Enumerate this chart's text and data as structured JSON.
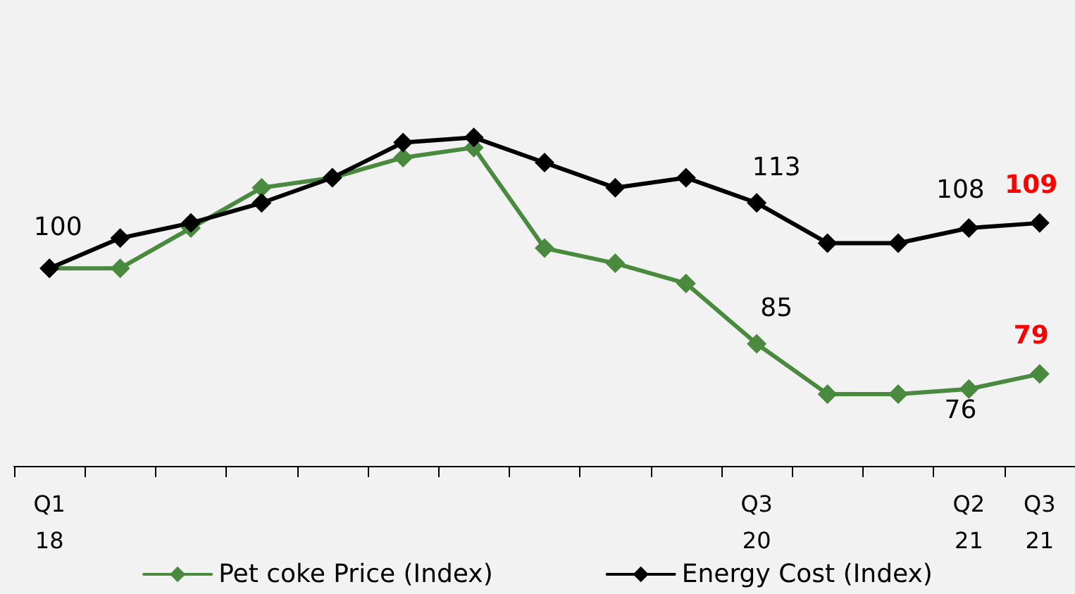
{
  "chart_data": {
    "type": "line",
    "categories": [
      "Q1\n18",
      null,
      null,
      null,
      null,
      null,
      null,
      null,
      null,
      null,
      "Q3\n20",
      null,
      null,
      "Q2\n21",
      "Q3\n21"
    ],
    "series": [
      {
        "name": "Pet coke Price (Index)",
        "color": "#4a8a3f",
        "values": [
          100,
          100,
          108,
          116,
          118,
          122,
          124,
          104,
          101,
          97,
          85,
          75,
          75,
          76,
          79
        ],
        "value_labels": [
          null,
          null,
          null,
          null,
          null,
          null,
          null,
          null,
          null,
          null,
          "85",
          null,
          null,
          "76",
          "79"
        ]
      },
      {
        "name": "Energy Cost (Index)",
        "color": "#000000",
        "values": [
          100,
          106,
          109,
          113,
          118,
          125,
          126,
          121,
          116,
          118,
          113,
          105,
          105,
          108,
          109
        ],
        "value_labels": [
          "100",
          null,
          null,
          null,
          null,
          null,
          null,
          null,
          null,
          null,
          "113",
          null,
          null,
          "108",
          "109"
        ]
      }
    ],
    "tick_labels": "x",
    "grid": false,
    "legend": "bottom",
    "marker": "diamond",
    "line_style": "solid"
  }
}
